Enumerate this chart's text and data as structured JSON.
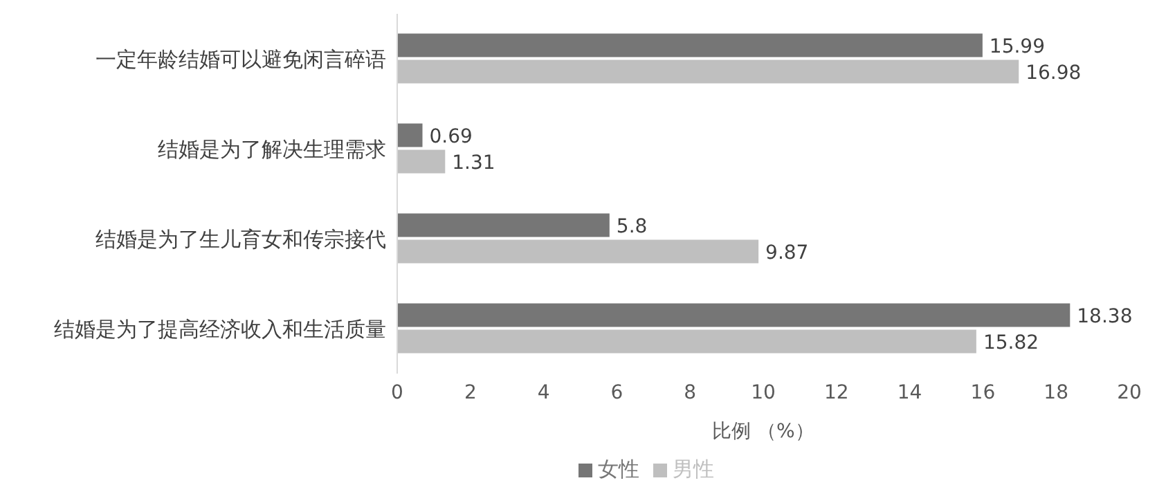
{
  "chart_data": {
    "type": "bar",
    "orientation": "horizontal",
    "categories": [
      "一定年龄结婚可以避免闲言碎语",
      "结婚是为了解决生理需求",
      "结婚是为了生儿育女和传宗接代",
      "结婚是为了提高经济收入和生活质量"
    ],
    "series": [
      {
        "name": "女性",
        "color": "#767676",
        "values": [
          15.99,
          0.69,
          5.8,
          18.38
        ]
      },
      {
        "name": "男性",
        "color": "#bfbfbf",
        "values": [
          16.98,
          1.31,
          9.87,
          15.82
        ]
      }
    ],
    "xlabel": "比例 （%）",
    "xlim": [
      0,
      20
    ],
    "xticks": [
      0,
      2,
      4,
      6,
      8,
      10,
      12,
      14,
      16,
      18,
      20
    ],
    "data_labels": true,
    "legend": "bottom",
    "grid": false
  }
}
